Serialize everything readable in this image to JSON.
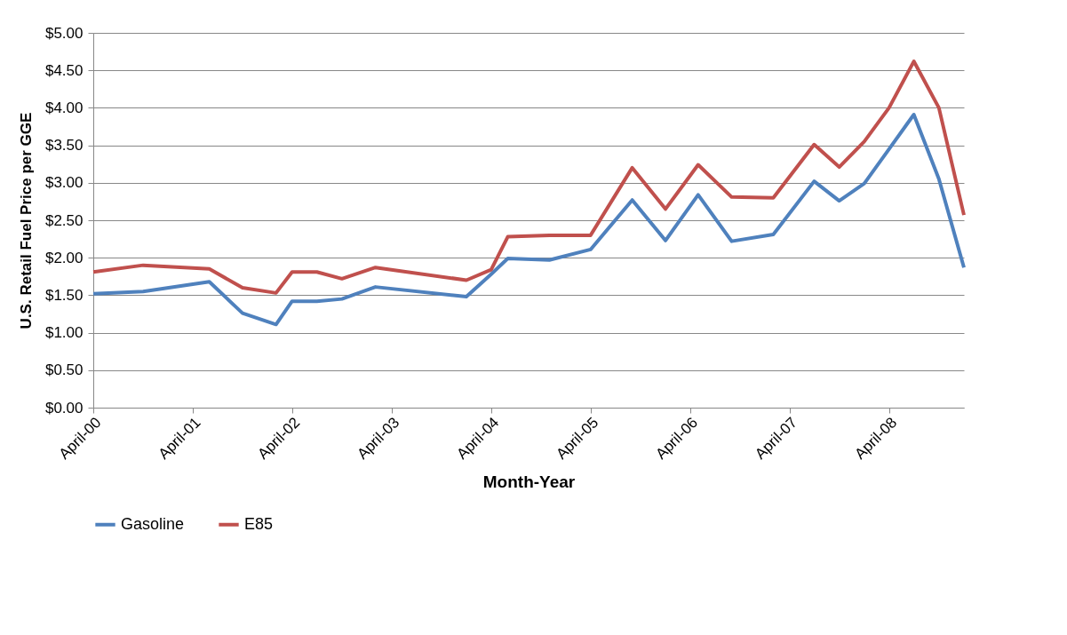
{
  "chart_data": {
    "type": "line",
    "xlabel": "Month-Year",
    "ylabel": "U.S. Retail Fuel Price per GGE",
    "x": [
      "2000-04",
      "2000-10",
      "2001-06",
      "2001-10",
      "2002-02",
      "2002-04",
      "2002-07",
      "2002-10",
      "2003-02",
      "2004-01",
      "2004-04",
      "2004-06",
      "2004-11",
      "2005-04",
      "2005-09",
      "2006-01",
      "2006-05",
      "2006-09",
      "2007-02",
      "2007-07",
      "2007-10",
      "2008-01",
      "2008-04",
      "2008-07",
      "2008-10",
      "2009-01"
    ],
    "series": [
      {
        "name": "Gasoline",
        "color": "#4f81bd",
        "values": [
          1.52,
          1.55,
          1.68,
          1.26,
          1.11,
          1.42,
          1.42,
          1.45,
          1.61,
          1.48,
          1.78,
          1.99,
          1.97,
          2.11,
          2.77,
          2.23,
          2.84,
          2.22,
          2.31,
          3.02,
          2.76,
          2.99,
          3.45,
          3.91,
          3.05,
          1.87
        ]
      },
      {
        "name": "E85",
        "color": "#c0504d",
        "values": [
          1.81,
          1.9,
          1.85,
          1.6,
          1.53,
          1.81,
          1.81,
          1.72,
          1.87,
          1.7,
          1.84,
          2.28,
          2.3,
          2.3,
          3.2,
          2.65,
          3.24,
          2.81,
          2.8,
          3.51,
          3.21,
          3.55,
          4.0,
          4.62,
          4.0,
          2.57
        ]
      }
    ],
    "xlim": [
      "2000-04",
      "2009-01"
    ],
    "xticks": [
      {
        "value": "2000-04",
        "label": "April-00"
      },
      {
        "value": "2001-04",
        "label": "April-01"
      },
      {
        "value": "2002-04",
        "label": "April-02"
      },
      {
        "value": "2003-04",
        "label": "April-03"
      },
      {
        "value": "2004-04",
        "label": "April-04"
      },
      {
        "value": "2005-04",
        "label": "April-05"
      },
      {
        "value": "2006-04",
        "label": "April-06"
      },
      {
        "value": "2007-04",
        "label": "April-07"
      },
      {
        "value": "2008-04",
        "label": "April-08"
      }
    ],
    "ylim": [
      0,
      5
    ],
    "yticks": [
      {
        "value": 0,
        "label": "$0.00"
      },
      {
        "value": 0.5,
        "label": "$0.50"
      },
      {
        "value": 1,
        "label": "$1.00"
      },
      {
        "value": 1.5,
        "label": "$1.50"
      },
      {
        "value": 2,
        "label": "$2.00"
      },
      {
        "value": 2.5,
        "label": "$2.50"
      },
      {
        "value": 3,
        "label": "$3.00"
      },
      {
        "value": 3.5,
        "label": "$3.50"
      },
      {
        "value": 4,
        "label": "$4.00"
      },
      {
        "value": 4.5,
        "label": "$4.50"
      },
      {
        "value": 5,
        "label": "$5.00"
      }
    ],
    "grid": "y",
    "legend": "bottom",
    "marker": "none",
    "line_style": "solid"
  }
}
